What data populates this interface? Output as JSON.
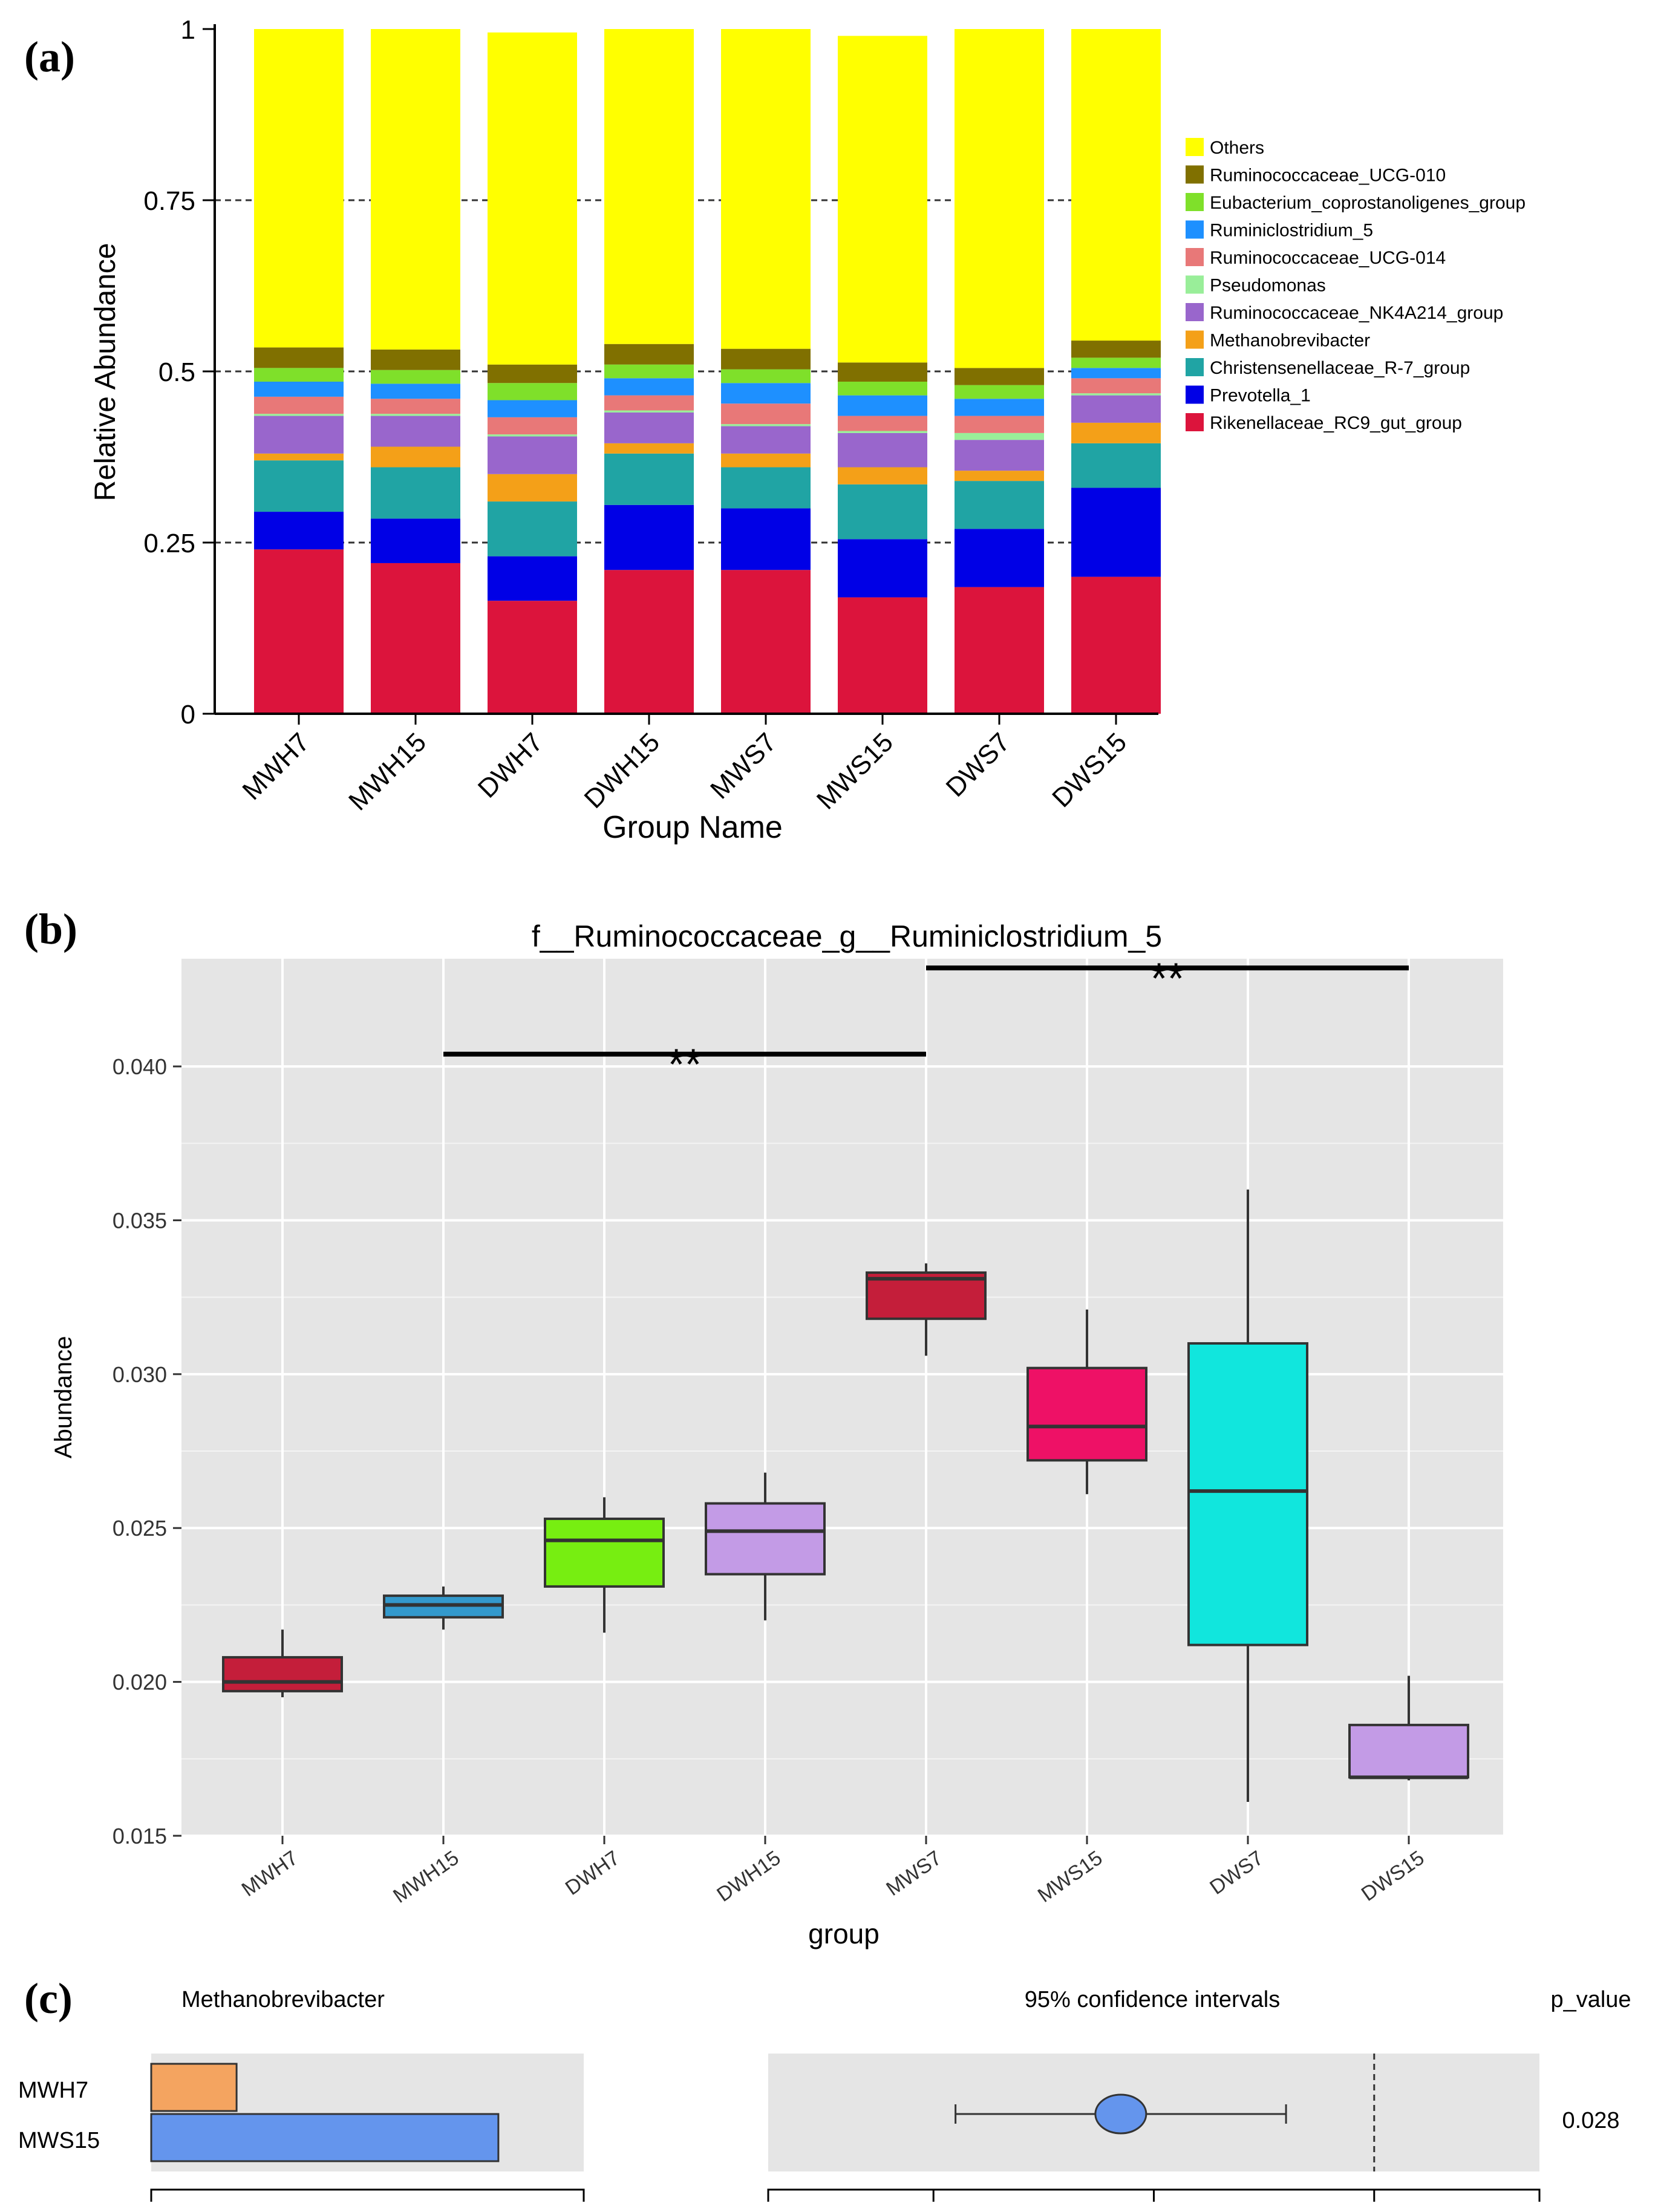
{
  "panel_labels": {
    "a": "(a)",
    "b": "(b)",
    "c": "(c)"
  },
  "chart_data": [
    {
      "type": "bar",
      "stacked": true,
      "panel": "(a)",
      "xlabel": "Group Name",
      "ylabel": "Relative Abundance",
      "ylim": [
        0,
        1
      ],
      "yticks": [
        "0",
        "0.25",
        "0.5",
        "0.75",
        "1"
      ],
      "ytick_values": [
        0,
        0.25,
        0.5,
        0.75,
        1
      ],
      "gridlines": [
        0.25,
        0.5,
        0.75
      ],
      "legend_position": "right",
      "categories": [
        "MWH7",
        "MWH15",
        "DWH7",
        "DWH15",
        "MWS7",
        "MWS15",
        "DWS7",
        "DWS15"
      ],
      "series": [
        {
          "name": "Rikenellaceae_RC9_gut_group",
          "color": "#dc143c",
          "values": [
            0.24,
            0.22,
            0.165,
            0.21,
            0.21,
            0.17,
            0.185,
            0.2
          ]
        },
        {
          "name": "Prevotella_1",
          "color": "#0000e6",
          "values": [
            0.055,
            0.065,
            0.065,
            0.095,
            0.09,
            0.085,
            0.085,
            0.13
          ]
        },
        {
          "name": "Christensenellaceae_R-7_group",
          "color": "#20a4a4",
          "values": [
            0.075,
            0.075,
            0.08,
            0.075,
            0.06,
            0.08,
            0.07,
            0.065
          ]
        },
        {
          "name": "Methanobrevibacter",
          "color": "#f4a018",
          "values": [
            0.01,
            0.03,
            0.04,
            0.015,
            0.02,
            0.025,
            0.015,
            0.03
          ]
        },
        {
          "name": "Ruminococcaceae_NK4A214_group",
          "color": "#9966cc",
          "values": [
            0.055,
            0.045,
            0.055,
            0.045,
            0.04,
            0.05,
            0.045,
            0.04
          ]
        },
        {
          "name": "Pseudomonas",
          "color": "#99ee99",
          "values": [
            0.003,
            0.003,
            0.003,
            0.003,
            0.003,
            0.003,
            0.01,
            0.003
          ]
        },
        {
          "name": "Ruminococcaceae_UCG-014",
          "color": "#e87878",
          "values": [
            0.025,
            0.022,
            0.025,
            0.022,
            0.03,
            0.022,
            0.025,
            0.022
          ]
        },
        {
          "name": "Ruminiclostridium_5",
          "color": "#1e90ff",
          "values": [
            0.022,
            0.022,
            0.025,
            0.025,
            0.03,
            0.03,
            0.025,
            0.015
          ]
        },
        {
          "name": "Eubacterium_coprostanoligenes_group",
          "color": "#7fe02a",
          "values": [
            0.02,
            0.02,
            0.025,
            0.02,
            0.02,
            0.02,
            0.02,
            0.015
          ]
        },
        {
          "name": "Ruminococcaceae_UCG-010",
          "color": "#807000",
          "values": [
            0.03,
            0.03,
            0.027,
            0.03,
            0.03,
            0.028,
            0.025,
            0.025
          ]
        },
        {
          "name": "Others",
          "color": "#ffff00",
          "values": [
            0.465,
            0.468,
            0.485,
            0.46,
            0.467,
            0.477,
            0.495,
            0.455
          ]
        }
      ],
      "legend_order": [
        "Others",
        "Ruminococcaceae_UCG-010",
        "Eubacterium_coprostanoligenes_group",
        "Ruminiclostridium_5",
        "Ruminococcaceae_UCG-014",
        "Pseudomonas",
        "Ruminococcaceae_NK4A214_group",
        "Methanobrevibacter",
        "Christensenellaceae_R-7_group",
        "Prevotella_1",
        "Rikenellaceae_RC9_gut_group"
      ]
    },
    {
      "type": "box",
      "panel": "(b)",
      "title": "f__Ruminococcaceae_g__Ruminiclostridium_5",
      "xlabel": "group",
      "ylabel": "Abundance",
      "ylim": [
        0.015,
        0.0435
      ],
      "yticks": [
        "0.015",
        "0.020",
        "0.025",
        "0.030",
        "0.035",
        "0.040"
      ],
      "ytick_values": [
        0.015,
        0.02,
        0.025,
        0.03,
        0.035,
        0.04
      ],
      "categories": [
        "MWH7",
        "MWH15",
        "DWH7",
        "DWH15",
        "MWS7",
        "MWS15",
        "DWS7",
        "DWS15"
      ],
      "boxes": [
        {
          "group": "MWH7",
          "min": 0.0195,
          "q1": 0.0197,
          "median": 0.02,
          "q3": 0.0208,
          "max": 0.0217,
          "color": "#c41e3a"
        },
        {
          "group": "MWH15",
          "min": 0.0217,
          "q1": 0.0221,
          "median": 0.0225,
          "q3": 0.0228,
          "max": 0.0231,
          "color": "#3399cc"
        },
        {
          "group": "DWH7",
          "min": 0.0216,
          "q1": 0.0231,
          "median": 0.0246,
          "q3": 0.0253,
          "max": 0.026,
          "color": "#77ee11"
        },
        {
          "group": "DWH15",
          "min": 0.022,
          "q1": 0.0235,
          "median": 0.0249,
          "q3": 0.0258,
          "max": 0.0268,
          "color": "#c39be6"
        },
        {
          "group": "MWS7",
          "min": 0.0306,
          "q1": 0.0318,
          "median": 0.0331,
          "q3": 0.0333,
          "max": 0.0336,
          "color": "#c41e3a"
        },
        {
          "group": "MWS15",
          "min": 0.0261,
          "q1": 0.0272,
          "median": 0.0283,
          "q3": 0.0302,
          "max": 0.0321,
          "color": "#ee1166"
        },
        {
          "group": "DWS7",
          "min": 0.0161,
          "q1": 0.0212,
          "median": 0.0262,
          "q3": 0.031,
          "max": 0.036,
          "color": "#11e6dd"
        },
        {
          "group": "DWS15",
          "min": 0.0168,
          "q1": 0.0169,
          "median": 0.0169,
          "q3": 0.0186,
          "max": 0.0202,
          "color": "#c39be6"
        }
      ],
      "significance": [
        {
          "from": "MWH15",
          "to": "MWS7",
          "y": 0.0404,
          "label": "**"
        },
        {
          "from": "MWS7",
          "to": "DWS15",
          "y": 0.0432,
          "label": "**"
        }
      ]
    },
    {
      "type": "bar",
      "panel": "(c)",
      "title": "Methanobrevibacter",
      "ci_title": "95% confidence intervals",
      "pvalue_label": "p_value",
      "categories": [
        "MWH7",
        "MWS15"
      ],
      "values": [
        0.0075,
        0.0305
      ],
      "xlim": [
        0,
        0.038
      ],
      "colors": [
        "#f4a460",
        "#6495ed"
      ],
      "ci": {
        "estimate": -0.023,
        "lower": -0.038,
        "upper": -0.008,
        "xlim": [
          -0.055,
          0.015
        ],
        "reference": 0
      },
      "p_value": "0.028"
    }
  ]
}
